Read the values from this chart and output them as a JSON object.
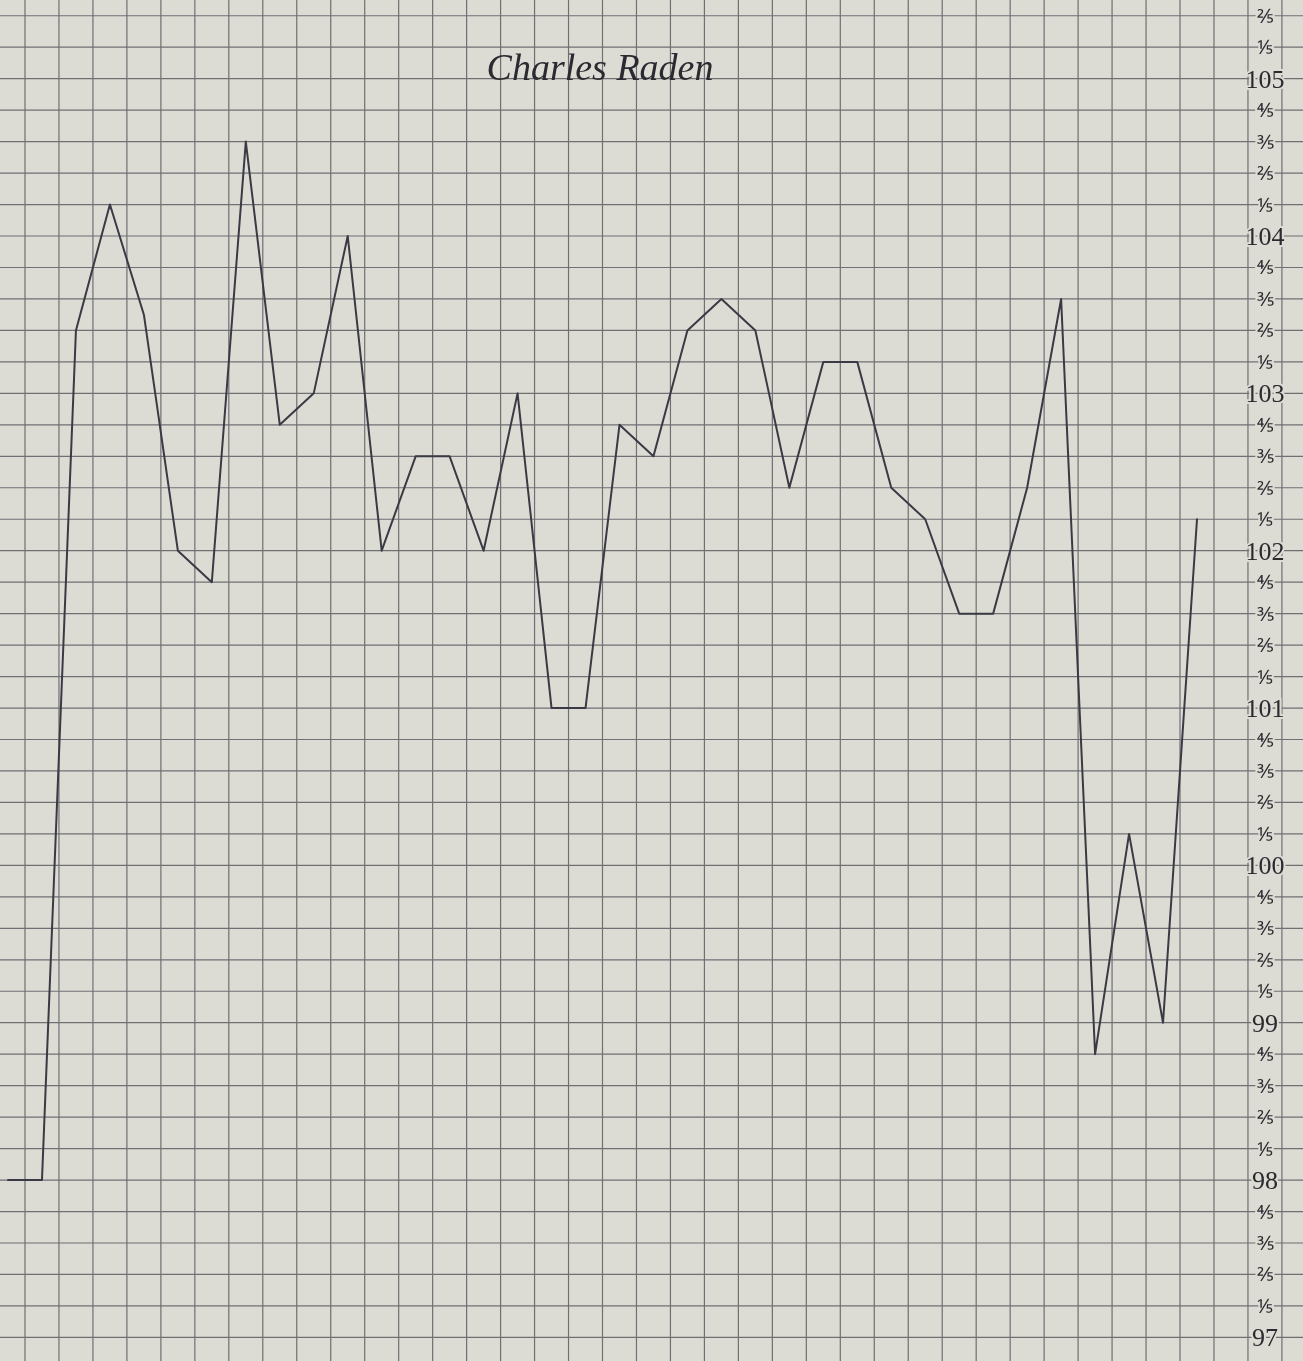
{
  "chart_data": {
    "type": "line",
    "title": "Charles Raden",
    "grid": true,
    "tick_labels": "y",
    "marker": "none",
    "line_style": "solid",
    "categories": [
      null,
      null,
      null,
      null,
      null,
      null,
      null,
      null,
      null,
      null,
      null,
      null,
      null,
      null,
      null,
      null,
      null,
      null,
      null,
      null,
      null,
      null,
      null,
      null,
      null,
      null,
      null,
      null,
      null,
      null,
      null,
      null,
      null,
      null,
      null,
      null
    ],
    "ylim": [
      96.85,
      105.5
    ],
    "yticks": [
      97,
      {
        "value": 97.2,
        "label": "⅕"
      },
      {
        "value": 97.4,
        "label": "⅖"
      },
      {
        "value": 97.6,
        "label": "⅗"
      },
      {
        "value": 97.8,
        "label": "⅘"
      },
      98,
      {
        "value": 98.2,
        "label": "⅕"
      },
      {
        "value": 98.4,
        "label": "⅖"
      },
      {
        "value": 98.6,
        "label": "⅗"
      },
      {
        "value": 98.8,
        "label": "⅘"
      },
      99,
      {
        "value": 99.2,
        "label": "⅕"
      },
      {
        "value": 99.4,
        "label": "⅖"
      },
      {
        "value": 99.6,
        "label": "⅗"
      },
      {
        "value": 99.8,
        "label": "⅘"
      },
      100,
      {
        "value": 100.2,
        "label": "⅕"
      },
      {
        "value": 100.4,
        "label": "⅖"
      },
      {
        "value": 100.6,
        "label": "⅗"
      },
      {
        "value": 100.8,
        "label": "⅘"
      },
      101,
      {
        "value": 101.2,
        "label": "⅕"
      },
      {
        "value": 101.4,
        "label": "⅖"
      },
      {
        "value": 101.6,
        "label": "⅗"
      },
      {
        "value": 101.8,
        "label": "⅘"
      },
      102,
      {
        "value": 102.2,
        "label": "⅕"
      },
      {
        "value": 102.4,
        "label": "⅖"
      },
      {
        "value": 102.6,
        "label": "⅗"
      },
      {
        "value": 102.8,
        "label": "⅘"
      },
      103,
      {
        "value": 103.2,
        "label": "⅕"
      },
      {
        "value": 103.4,
        "label": "⅖"
      },
      {
        "value": 103.6,
        "label": "⅗"
      },
      {
        "value": 103.8,
        "label": "⅘"
      },
      104,
      {
        "value": 104.2,
        "label": "⅕"
      },
      {
        "value": 104.4,
        "label": "⅖"
      },
      {
        "value": 104.6,
        "label": "⅗"
      },
      {
        "value": 104.8,
        "label": "⅘"
      },
      105,
      {
        "value": 105.2,
        "label": "⅕"
      },
      {
        "value": 105.4,
        "label": "⅖"
      }
    ],
    "series": [
      {
        "color": "#3a3a44",
        "values": [
          98.0,
          98.0,
          103.4,
          104.2,
          103.5,
          102.0,
          101.8,
          104.6,
          102.8,
          103.0,
          104.0,
          102.0,
          102.6,
          102.6,
          102.0,
          103.0,
          101.0,
          101.0,
          102.8,
          102.6,
          103.4,
          103.6,
          103.4,
          102.4,
          103.2,
          103.2,
          102.4,
          102.2,
          101.6,
          101.6,
          102.4,
          103.6,
          98.8,
          100.2,
          99.0,
          102.2
        ]
      }
    ]
  }
}
